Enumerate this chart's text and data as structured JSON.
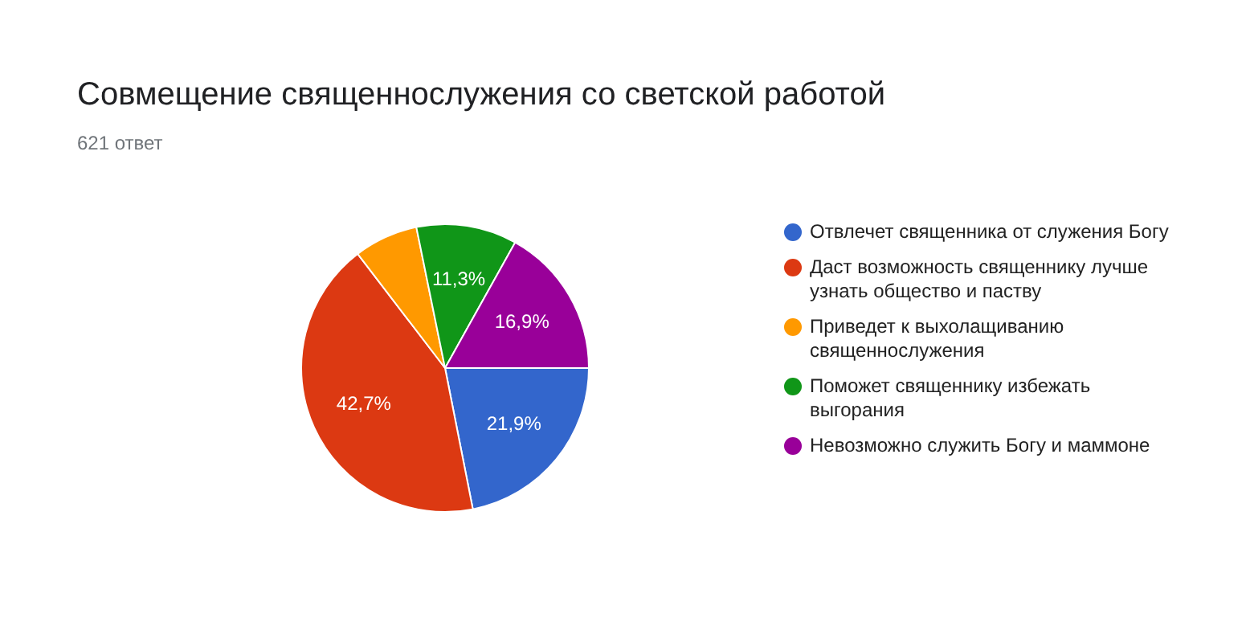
{
  "chart_data": {
    "type": "pie",
    "title": "Совмещение священнослужения со светской работой",
    "subtitle": "621 ответ",
    "categories": [
      "Отвлечет священника от служения Богу",
      "Даст возможность священнику лучше узнать общество и паству",
      "Приведет к выхолащиванию священнослужения",
      "Поможет священнику избежать выгорания",
      "Невозможно служить Богу и маммоне"
    ],
    "values": [
      21.9,
      42.7,
      7.2,
      11.3,
      16.9
    ],
    "colors": [
      "#3366cc",
      "#dc3912",
      "#ff9900",
      "#109618",
      "#990099"
    ],
    "value_labels": [
      "21,9%",
      "42,7%",
      null,
      "11,3%",
      "16,9%"
    ],
    "legend": "right"
  }
}
